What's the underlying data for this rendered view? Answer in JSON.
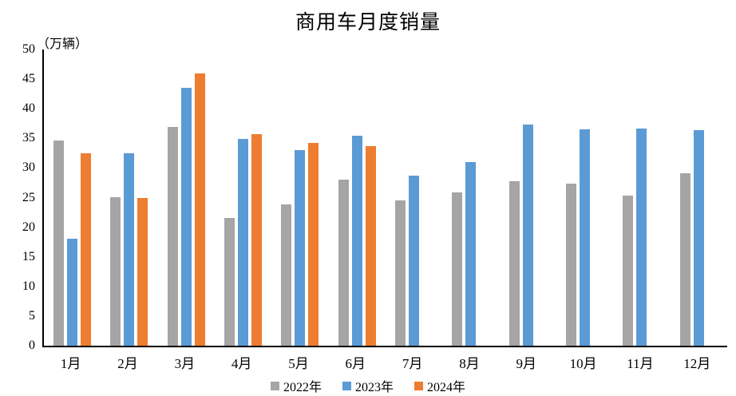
{
  "chart_data": {
    "type": "bar",
    "title": "商用车月度销量",
    "unit_label": "（万辆）",
    "categories": [
      "1月",
      "2月",
      "3月",
      "4月",
      "5月",
      "6月",
      "7月",
      "8月",
      "9月",
      "10月",
      "11月",
      "12月"
    ],
    "series": [
      {
        "name": "2022年",
        "color": "#A5A5A5",
        "values": [
          34.6,
          25.1,
          37.0,
          21.6,
          23.9,
          28.1,
          24.6,
          25.9,
          27.8,
          27.3,
          25.4,
          29.1
        ]
      },
      {
        "name": "2023年",
        "color": "#5B9BD5",
        "values": [
          18.0,
          32.5,
          43.5,
          34.9,
          33.0,
          35.5,
          28.7,
          31.0,
          37.3,
          36.5,
          36.7,
          36.4
        ]
      },
      {
        "name": "2024年",
        "color": "#ED7D31",
        "values": [
          32.5,
          25.0,
          46.0,
          35.7,
          34.2,
          33.7,
          null,
          null,
          null,
          null,
          null,
          null
        ]
      }
    ],
    "ylim": [
      0,
      50
    ],
    "yticks": [
      0,
      5,
      10,
      15,
      20,
      25,
      30,
      35,
      40,
      45,
      50
    ],
    "grid": false,
    "legend_position": "bottom",
    "axis_color": "#000000"
  }
}
